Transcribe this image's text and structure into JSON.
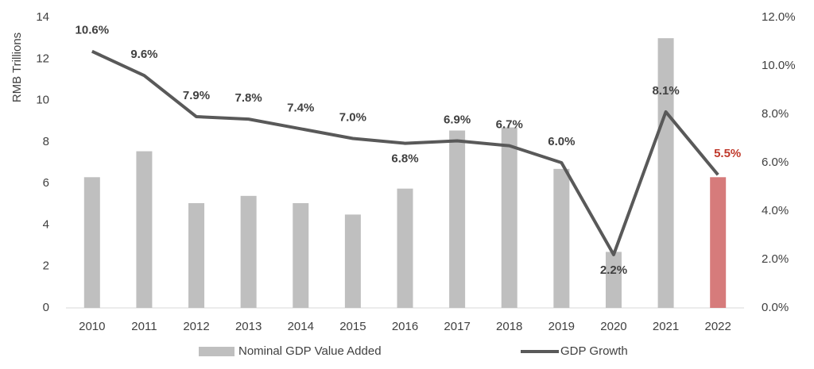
{
  "chart_data": {
    "type": "bar-line",
    "categories": [
      "2010",
      "2011",
      "2012",
      "2013",
      "2014",
      "2015",
      "2016",
      "2017",
      "2018",
      "2019",
      "2020",
      "2021",
      "2022"
    ],
    "y_label": "RMB Trillions",
    "ylim": [
      0,
      14
    ],
    "yticks": [
      0,
      2,
      4,
      6,
      8,
      10,
      12,
      14
    ],
    "y2lim": [
      0,
      12
    ],
    "y2ticks": [
      {
        "value": 0,
        "label": "0.0%"
      },
      {
        "value": 2,
        "label": "2.0%"
      },
      {
        "value": 4,
        "label": "4.0%"
      },
      {
        "value": 6,
        "label": "6.0%"
      },
      {
        "value": 8,
        "label": "8.0%"
      },
      {
        "value": 10,
        "label": "10.0%"
      },
      {
        "value": 12,
        "label": "12.0%"
      }
    ],
    "series": [
      {
        "name": "Nominal GDP Value Added",
        "type": "bar",
        "color": "#bfbfbf",
        "colors": [
          "#bfbfbf",
          "#bfbfbf",
          "#bfbfbf",
          "#bfbfbf",
          "#bfbfbf",
          "#bfbfbf",
          "#bfbfbf",
          "#bfbfbf",
          "#bfbfbf",
          "#bfbfbf",
          "#bfbfbf",
          "#bfbfbf",
          "#d67b7b"
        ],
        "values": [
          6.3,
          7.55,
          5.05,
          5.4,
          5.05,
          4.5,
          5.75,
          8.55,
          8.7,
          6.7,
          2.7,
          13.0,
          6.3
        ]
      },
      {
        "name": "GDP Growth",
        "type": "line",
        "axis": "y2",
        "color": "#595959",
        "values": [
          10.6,
          9.6,
          7.9,
          7.8,
          7.4,
          7.0,
          6.8,
          6.9,
          6.7,
          6.0,
          2.2,
          8.1,
          5.5
        ],
        "value_labels": [
          "10.6%",
          "9.6%",
          "7.9%",
          "7.8%",
          "7.4%",
          "7.0%",
          "6.8%",
          "6.9%",
          "6.7%",
          "6.0%",
          "2.2%",
          "8.1%",
          "5.5%"
        ],
        "label_colors": [
          "#404040",
          "#404040",
          "#404040",
          "#404040",
          "#404040",
          "#404040",
          "#404040",
          "#404040",
          "#404040",
          "#404040",
          "#404040",
          "#404040",
          "#c0392b"
        ]
      }
    ]
  }
}
